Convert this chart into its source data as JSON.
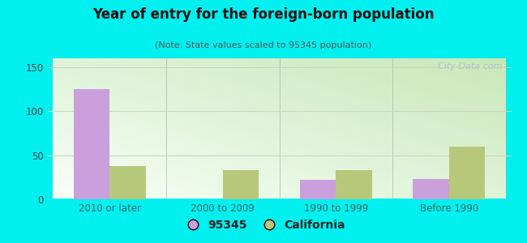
{
  "title": "Year of entry for the foreign-born population",
  "subtitle": "(Note: State values scaled to 95345 population)",
  "categories": [
    "2010 or later",
    "2000 to 2009",
    "1990 to 1999",
    "Before 1990"
  ],
  "values_95345": [
    125,
    0,
    22,
    23
  ],
  "values_california": [
    38,
    33,
    33,
    60
  ],
  "color_95345": "#c9a0dc",
  "color_california": "#b8c87a",
  "ylim": [
    0,
    160
  ],
  "yticks": [
    0,
    50,
    100,
    150
  ],
  "background_outer": "#00f0f0",
  "legend_95345": "95345",
  "legend_california": "California",
  "bar_width": 0.32,
  "grid_color": "#c8d8c0",
  "watermark": "  City-Data.com",
  "title_color": "#111111",
  "subtitle_color": "#555555",
  "tick_label_color": "#336666",
  "ytick_label_color": "#444444"
}
